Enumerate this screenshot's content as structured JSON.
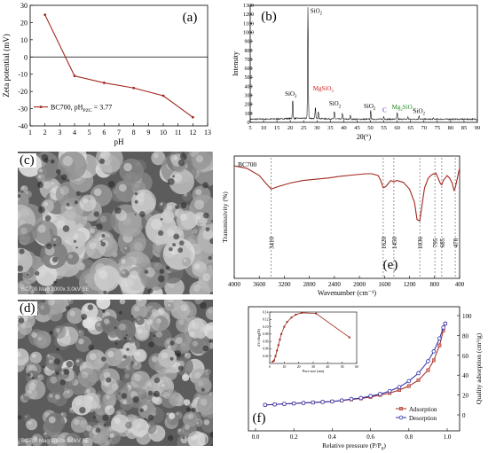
{
  "panels": {
    "a": {
      "label": "(a)"
    },
    "b": {
      "label": "(b)"
    },
    "c": {
      "label": "(c)",
      "caption": "BC700  Mag 2000x  3.0kV  SE"
    },
    "d": {
      "label": "(d)",
      "caption": "BC700  Mag 2000x  3.0kV  SE"
    },
    "e": {
      "label": "(e)"
    },
    "f": {
      "label": "(f)"
    }
  },
  "colors": {
    "brown": "#a0281e",
    "blue": "#2c2ca8",
    "red_annot": "#d22020",
    "green_annot": "#1f8a1f",
    "black": "#000000"
  },
  "chart_data": [
    {
      "id": "a",
      "type": "line",
      "xlabel": "pH",
      "ylabel": "Zeta potential (mV)",
      "xlim": [
        1,
        13
      ],
      "ylim": [
        -40,
        30
      ],
      "xticks": [
        1,
        2,
        3,
        4,
        5,
        6,
        7,
        8,
        9,
        10,
        11,
        12,
        13
      ],
      "yticks": [
        -40,
        -30,
        -20,
        -10,
        0,
        10,
        20,
        30
      ],
      "zero_line": true,
      "legend": {
        "placement": "bottom-left",
        "text_main": "BC700, pH",
        "text_sub": "PZC",
        "text_tail": " = 3.77"
      },
      "series": [
        {
          "x": [
            2,
            4,
            6,
            8,
            10,
            12
          ],
          "y": [
            24.5,
            -11,
            -15,
            -18,
            -22.5,
            -35
          ]
        }
      ]
    },
    {
      "id": "b",
      "type": "line",
      "xlabel": "2θ(°)",
      "ylabel": "Intensity",
      "xlim": [
        5,
        90
      ],
      "ylim": [
        0,
        1300
      ],
      "xticks": [
        5,
        10,
        15,
        20,
        25,
        30,
        35,
        40,
        45,
        50,
        55,
        60,
        65,
        70,
        75,
        80,
        85,
        90
      ],
      "yticks": [
        0,
        100,
        200,
        300,
        400,
        500,
        600,
        700,
        800,
        900,
        1000,
        1100,
        1200,
        1300
      ],
      "peaks": [
        {
          "x": 20.9,
          "y": 240
        },
        {
          "x": 26.6,
          "y": 1260
        },
        {
          "x": 29.4,
          "y": 150
        },
        {
          "x": 30.5,
          "y": 110
        },
        {
          "x": 36.5,
          "y": 110
        },
        {
          "x": 39.5,
          "y": 90
        },
        {
          "x": 42.5,
          "y": 70
        },
        {
          "x": 50.1,
          "y": 120
        },
        {
          "x": 55.0,
          "y": 60
        },
        {
          "x": 60.0,
          "y": 95
        },
        {
          "x": 64.0,
          "y": 50
        },
        {
          "x": 68.2,
          "y": 65
        },
        {
          "x": 73.5,
          "y": 35
        }
      ],
      "annotations": [
        {
          "text": "SiO",
          "sub": "2",
          "x": 27.5,
          "y": 1215,
          "color": "black"
        },
        {
          "text": "SiO",
          "sub": "2",
          "x": 18.0,
          "y": 295,
          "color": "black"
        },
        {
          "text": "MgSiO",
          "sub": "3",
          "x": 28.5,
          "y": 355,
          "color": "red_annot"
        },
        {
          "text": "SiO",
          "sub": "2",
          "x": 34.5,
          "y": 185,
          "color": "black"
        },
        {
          "text": "SiO",
          "sub": "2",
          "x": 47.5,
          "y": 160,
          "color": "black"
        },
        {
          "text": "C",
          "sub": "",
          "x": 54.5,
          "y": 115,
          "color": "blue"
        },
        {
          "text": "Mg",
          "sub": "2",
          "tail": "SiO",
          "sub2": "4",
          "x": 58.0,
          "y": 150,
          "color": "green_annot"
        },
        {
          "text": "SiO",
          "sub": "2",
          "x": 66.0,
          "y": 105,
          "color": "black"
        }
      ]
    },
    {
      "id": "e",
      "type": "line",
      "title": "BC700",
      "xlabel": "Wavenumber (cm⁻¹)",
      "ylabel": "Transmissivity (%)",
      "xlim": [
        4000,
        400
      ],
      "ylim": [
        0,
        100
      ],
      "xticks": [
        4000,
        3600,
        3200,
        2800,
        2400,
        2000,
        1600,
        1200,
        800,
        400
      ],
      "bands": [
        3410,
        1620,
        1450,
        1036,
        795,
        685,
        470
      ],
      "band_labels": [
        "3410",
        "1620",
        "1450",
        "1036",
        "795",
        "685",
        "470"
      ],
      "series": [
        {
          "x": [
            4000,
            3800,
            3600,
            3500,
            3410,
            3300,
            3100,
            2900,
            2700,
            2500,
            2300,
            2100,
            1900,
            1800,
            1700,
            1660,
            1620,
            1580,
            1500,
            1450,
            1400,
            1300,
            1200,
            1120,
            1080,
            1036,
            1000,
            960,
            900,
            850,
            820,
            800,
            795,
            780,
            760,
            720,
            700,
            685,
            660,
            600,
            560,
            520,
            490,
            470,
            440,
            420,
            400
          ],
          "y": [
            92,
            90,
            84,
            78,
            73,
            75,
            78,
            80,
            81,
            82,
            83.5,
            84.5,
            85.5,
            85.5,
            84,
            80,
            74,
            75,
            80,
            79,
            80,
            78.5,
            73,
            62,
            48,
            47,
            60,
            74,
            82,
            84.5,
            85.5,
            85,
            85.5,
            86,
            84,
            79,
            77,
            76.5,
            80,
            84,
            82,
            78,
            72,
            74,
            81,
            86,
            90
          ]
        }
      ]
    },
    {
      "id": "f",
      "type": "line",
      "xlabel": "Relative pressure (P/P",
      "xlabel_sub": "0",
      "xlabel_tail": ")",
      "ylabel": "Quality adsorption (cm³/g)",
      "xlim": [
        0,
        1.0
      ],
      "ylim": [
        0,
        100
      ],
      "xticks": [
        0.0,
        0.2,
        0.4,
        0.6,
        0.8,
        1.0
      ],
      "yticks": [
        0,
        20,
        40,
        60,
        80,
        100
      ],
      "legend": {
        "placement": "bottom-right"
      },
      "series": [
        {
          "name": "Adsorption",
          "x": [
            0.05,
            0.1,
            0.15,
            0.2,
            0.25,
            0.3,
            0.35,
            0.4,
            0.45,
            0.5,
            0.55,
            0.6,
            0.65,
            0.7,
            0.75,
            0.8,
            0.85,
            0.9,
            0.93,
            0.96,
            0.98,
            0.99
          ],
          "y": [
            10,
            10.5,
            11,
            11.5,
            12,
            12.5,
            13,
            13.5,
            14.5,
            15.5,
            16.5,
            18,
            20,
            22,
            25,
            29,
            35,
            45,
            55,
            70,
            85,
            92
          ]
        },
        {
          "name": "Desorption",
          "x": [
            0.99,
            0.98,
            0.96,
            0.93,
            0.9,
            0.85,
            0.8,
            0.75,
            0.7,
            0.65,
            0.6,
            0.55,
            0.5,
            0.45,
            0.4,
            0.35,
            0.3,
            0.25,
            0.2,
            0.15,
            0.1,
            0.05
          ],
          "y": [
            92,
            88,
            77,
            64,
            54,
            42,
            34,
            28,
            24,
            21,
            19,
            17,
            16,
            14.5,
            13.5,
            13,
            12.5,
            12,
            11.5,
            11,
            10.5,
            10
          ]
        }
      ],
      "inset": {
        "type": "line",
        "xlabel": "Pore size (nm)",
        "ylabel": "dV/dlog(D)",
        "xlim": [
          0,
          60
        ],
        "ylim": [
          0,
          0.14
        ],
        "xticks": [
          0,
          10,
          20,
          30,
          40,
          50,
          60
        ],
        "yticks": [
          0.02,
          0.04,
          0.06,
          0.08,
          0.1,
          0.12,
          0.14
        ],
        "series": [
          {
            "x": [
              2,
              3,
              4,
              5,
              6,
              7,
              8,
              10,
              12,
              15,
              18,
              22,
              32,
              55
            ],
            "y": [
              0.005,
              0.008,
              0.02,
              0.035,
              0.05,
              0.065,
              0.08,
              0.1,
              0.113,
              0.125,
              0.133,
              0.138,
              0.136,
              0.071
            ]
          }
        ]
      }
    }
  ]
}
